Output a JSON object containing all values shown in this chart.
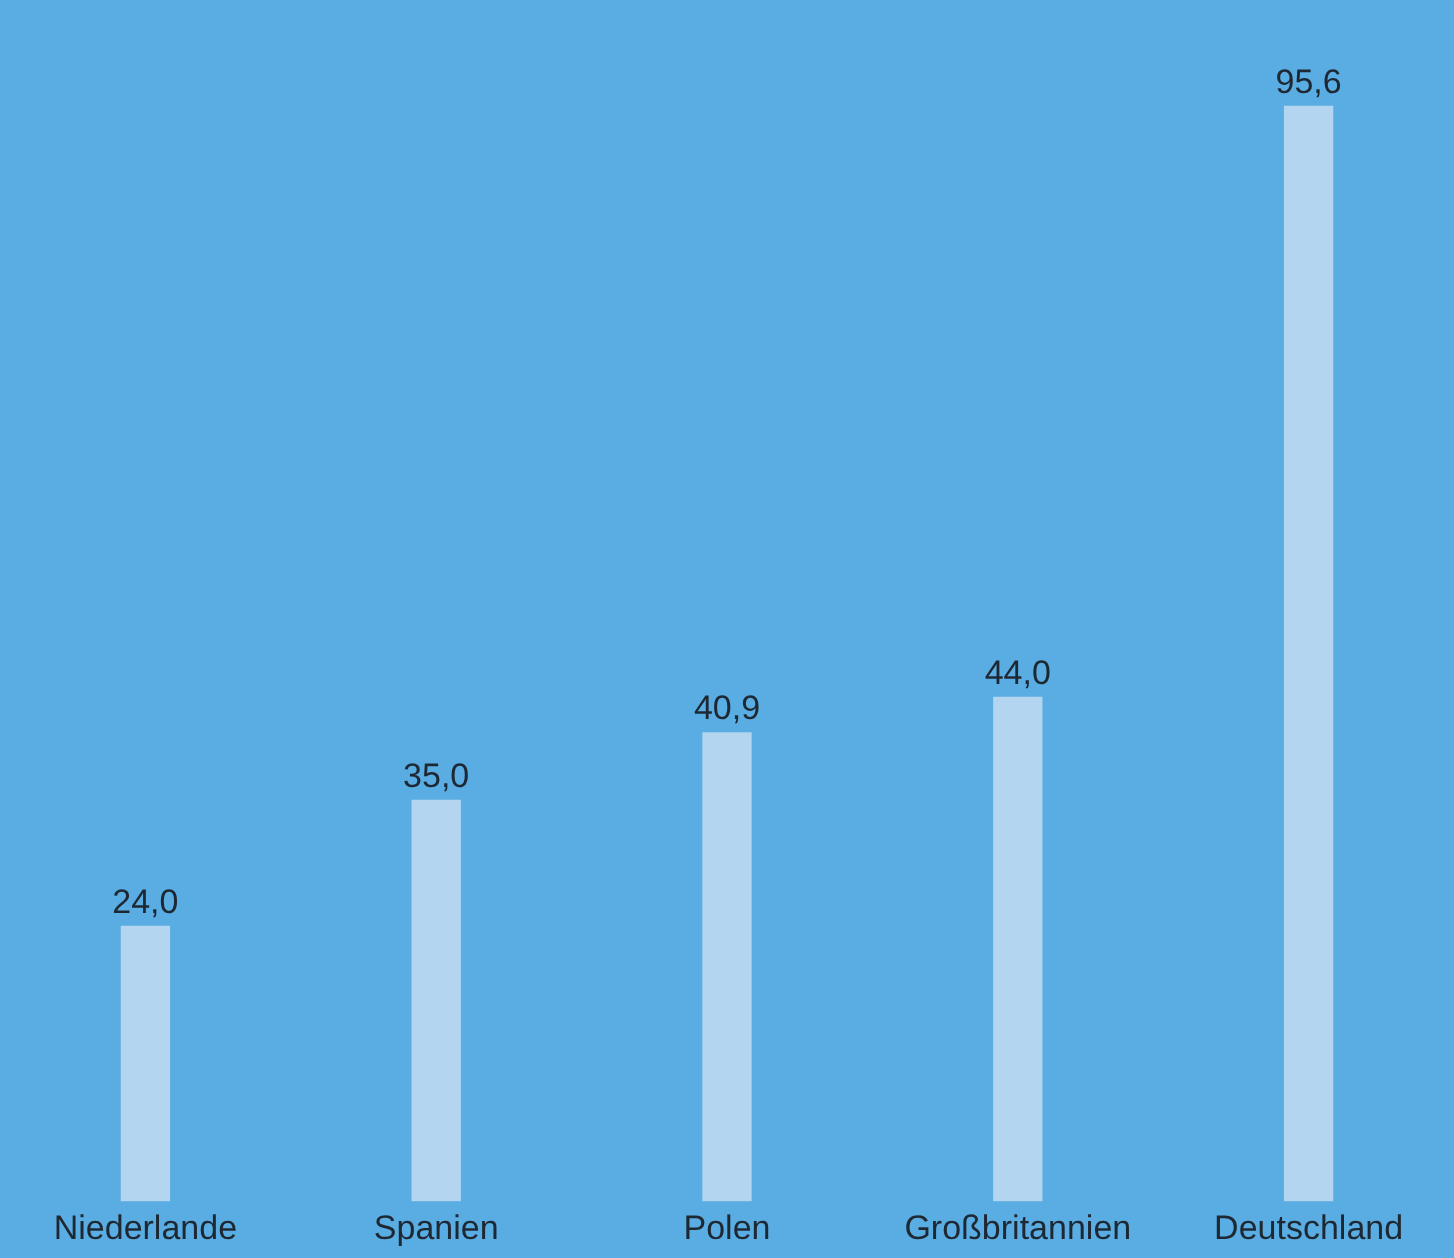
{
  "chart_data": {
    "type": "bar",
    "categories": [
      "Niederlande",
      "Spanien",
      "Polen",
      "Großbritannien",
      "Deutschland"
    ],
    "values": [
      24.0,
      35.0,
      40.9,
      44.0,
      95.6
    ],
    "value_labels": [
      "24,0",
      "35,0",
      "40,9",
      "44,0",
      "95,6"
    ],
    "color": "#b3d5ef",
    "grid": false,
    "legend": false,
    "tick_labels": "x"
  }
}
